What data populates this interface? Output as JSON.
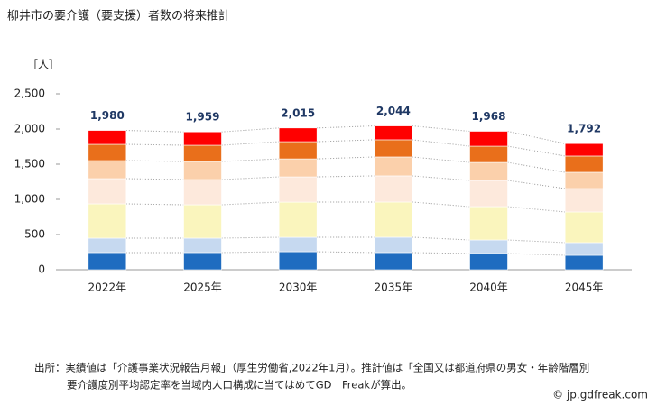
{
  "chart_data": {
    "type": "stacked_bar",
    "title": "柳井市の要介護（要支援）者数の将来推計",
    "y_label": "［人］",
    "categories": [
      "2022年",
      "2025年",
      "2030年",
      "2035年",
      "2040年",
      "2045年"
    ],
    "series": [
      {
        "color": "#1f6cc0",
        "values": [
          244,
          244,
          256,
          244,
          231,
          205
        ]
      },
      {
        "color": "#c6d9f0",
        "values": [
          205,
          205,
          205,
          218,
          192,
          180
        ]
      },
      {
        "color": "#faf5bd",
        "values": [
          487,
          474,
          500,
          500,
          474,
          436
        ]
      },
      {
        "color": "#fde9dc",
        "values": [
          359,
          359,
          359,
          372,
          372,
          333
        ]
      },
      {
        "color": "#fbd0ab",
        "values": [
          256,
          256,
          256,
          269,
          256,
          231
        ]
      },
      {
        "color": "#e96f1b",
        "values": [
          231,
          231,
          244,
          244,
          231,
          231
        ]
      },
      {
        "color": "#ff0000",
        "values": [
          198,
          190,
          195,
          197,
          212,
          176
        ]
      }
    ],
    "totals": [
      1980,
      1959,
      2015,
      2044,
      1968,
      1792
    ],
    "total_labels": [
      "1,980",
      "1,959",
      "2,015",
      "2,044",
      "1,968",
      "1,792"
    ],
    "ylim": [
      0,
      2500
    ],
    "yticks": [
      0,
      500,
      {
        "value": 1000,
        "label": "1,000"
      },
      {
        "value": 1500,
        "label": "1,500"
      },
      {
        "value": 2000,
        "label": "2,000"
      },
      {
        "value": 2500,
        "label": "2,500"
      }
    ],
    "grid": false,
    "source": [
      "出所：実績値は「介護事業状況報告月報」（厚生労働省,2022年1月）。推計値は「全国又は都道府県の男女・年齢階層別",
      "要介護度別平均認定率を当域内人口構成に当てはめてGD　Freakが算出。"
    ],
    "watermark": "© jp.gdfreak.com"
  }
}
